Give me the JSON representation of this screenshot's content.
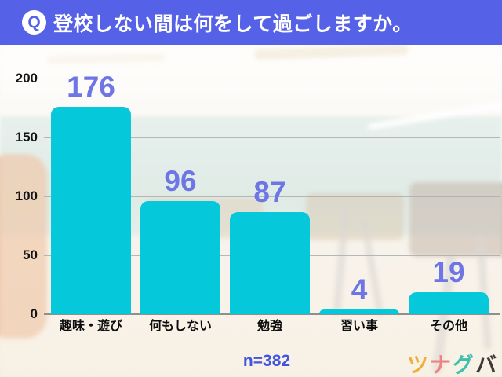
{
  "header": {
    "icon_letter": "Q",
    "title": "登校しない間は何をして過ごしますか。",
    "bg_color": "#5561e6"
  },
  "chart_data": {
    "type": "bar",
    "title": "登校しない間は何をして過ごしますか。",
    "categories": [
      "趣味・遊び",
      "何もしない",
      "勉強",
      "習い事",
      "その他"
    ],
    "values": [
      176,
      96,
      87,
      4,
      19
    ],
    "yticks": [
      0,
      50,
      100,
      150,
      200
    ],
    "ylim": [
      0,
      200
    ],
    "xlabel": "",
    "ylabel": "",
    "grid": true,
    "legend_position": "none",
    "bar_color": "#05c8db",
    "value_label_color": "#6e75e5"
  },
  "footer": {
    "sample_size": "n=382",
    "sample_size_color": "#4355de",
    "logo_chars": [
      {
        "char": "ツ",
        "color": "#f1ae3a"
      },
      {
        "char": "ナ",
        "color": "#ec8483"
      },
      {
        "char": "グ",
        "color": "#3fbfae"
      },
      {
        "char": "バ",
        "color": "#3e3a39"
      }
    ]
  }
}
